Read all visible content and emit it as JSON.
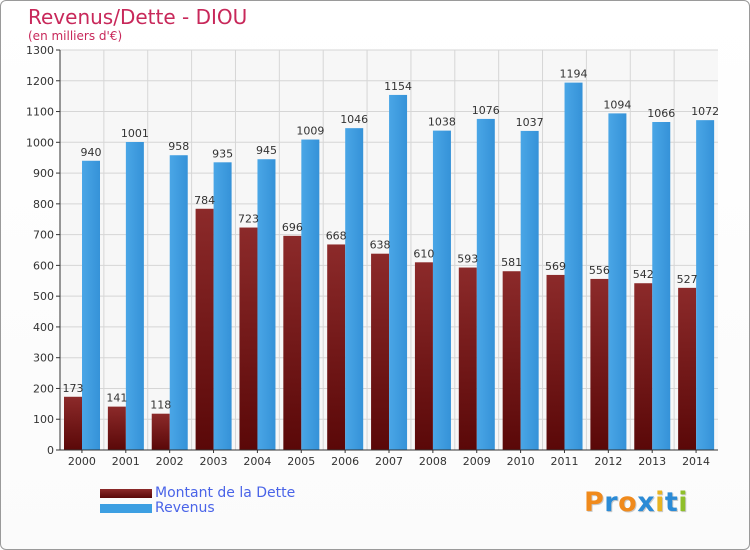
{
  "chart_data": {
    "type": "bar",
    "title": "Revenus/Dette - DIOU",
    "subtitle": "(en milliers d'€)",
    "categories": [
      "2000",
      "2001",
      "2002",
      "2003",
      "2004",
      "2005",
      "2006",
      "2007",
      "2008",
      "2009",
      "2010",
      "2011",
      "2012",
      "2013",
      "2014"
    ],
    "series": [
      {
        "name": "Montant de la Dette",
        "color": "#7a1a1a",
        "values": [
          173,
          141,
          118,
          784,
          723,
          696,
          668,
          638,
          610,
          593,
          581,
          569,
          556,
          542,
          527
        ]
      },
      {
        "name": "Revenus",
        "color": "#3d9fe2",
        "values": [
          940,
          1001,
          958,
          935,
          945,
          1009,
          1046,
          1154,
          1038,
          1076,
          1037,
          1194,
          1094,
          1066,
          1072
        ]
      }
    ],
    "ylim": [
      0,
      1300
    ],
    "yticks": [
      0,
      100,
      200,
      300,
      400,
      500,
      600,
      700,
      800,
      900,
      1000,
      1100,
      1200,
      1300
    ],
    "grid": true,
    "legend_position": "bottom-left"
  },
  "logo": {
    "text": "Proxiti",
    "letters": [
      {
        "ch": "P",
        "color": "#f08a1c"
      },
      {
        "ch": "r",
        "color": "#2b8bd6"
      },
      {
        "ch": "o",
        "color": "#f08a1c"
      },
      {
        "ch": "x",
        "color": "#2b8bd6"
      },
      {
        "ch": "i",
        "color": "#e8b422"
      },
      {
        "ch": "t",
        "color": "#2b8bd6"
      },
      {
        "ch": "i",
        "color": "#8fbf2a"
      }
    ]
  }
}
